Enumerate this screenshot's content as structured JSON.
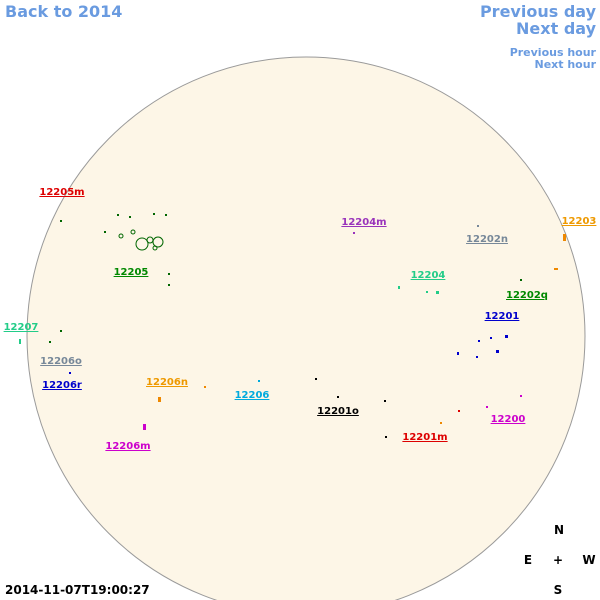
{
  "navigation": {
    "back": "Back to 2014",
    "previous_day": "Previous day",
    "next_day": "Next day",
    "previous_hour": "Previous hour",
    "next_hour": "Next hour"
  },
  "regions": [
    "12205m",
    "12204m",
    "12203",
    "12202n",
    "12205",
    "12204",
    "12202q",
    "12207",
    "12201",
    "12206o",
    "12206r",
    "12206n",
    "12206",
    "12201o",
    "12200",
    "12201m",
    "12206m"
  ],
  "timestamp": "2014-11-07T19:00:27",
  "compass": {
    "north": "N",
    "east": "E",
    "center": "+",
    "west": "W",
    "south": "S"
  }
}
